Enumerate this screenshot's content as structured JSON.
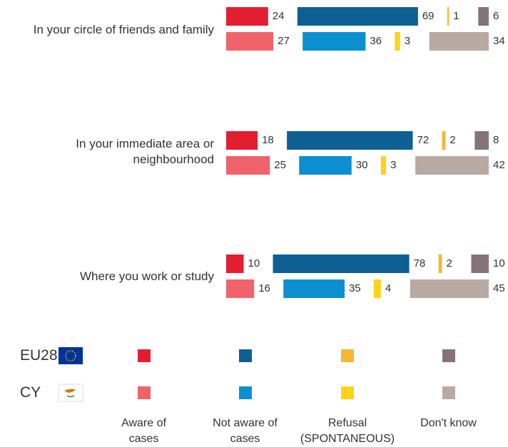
{
  "chart_data": {
    "type": "bar",
    "stacked": true,
    "categories": [
      "In your circle of friends and family",
      "In your immediate area or neighbourhood",
      "Where you work or study"
    ],
    "legend_rows": [
      "EU28",
      "CY"
    ],
    "series": [
      {
        "name": "Aware of cases",
        "colors": [
          "#e31e30",
          "#f0636b"
        ],
        "values": [
          [
            24,
            27
          ],
          [
            18,
            25
          ],
          [
            10,
            16
          ]
        ]
      },
      {
        "name": "Not aware of cases",
        "colors": [
          "#0e5f94",
          "#0b8fd0"
        ],
        "values": [
          [
            69,
            36
          ],
          [
            72,
            30
          ],
          [
            78,
            35
          ]
        ]
      },
      {
        "name": "Refusal (SPONTANEOUS)",
        "colors": [
          "#f7b731",
          "#ffd21a"
        ],
        "values": [
          [
            1,
            3
          ],
          [
            2,
            3
          ],
          [
            2,
            4
          ]
        ]
      },
      {
        "name": "Don't know",
        "colors": [
          "#85737a",
          "#b8aaa2"
        ],
        "values": [
          [
            6,
            34
          ],
          [
            8,
            42
          ],
          [
            10,
            45
          ]
        ]
      }
    ]
  }
}
